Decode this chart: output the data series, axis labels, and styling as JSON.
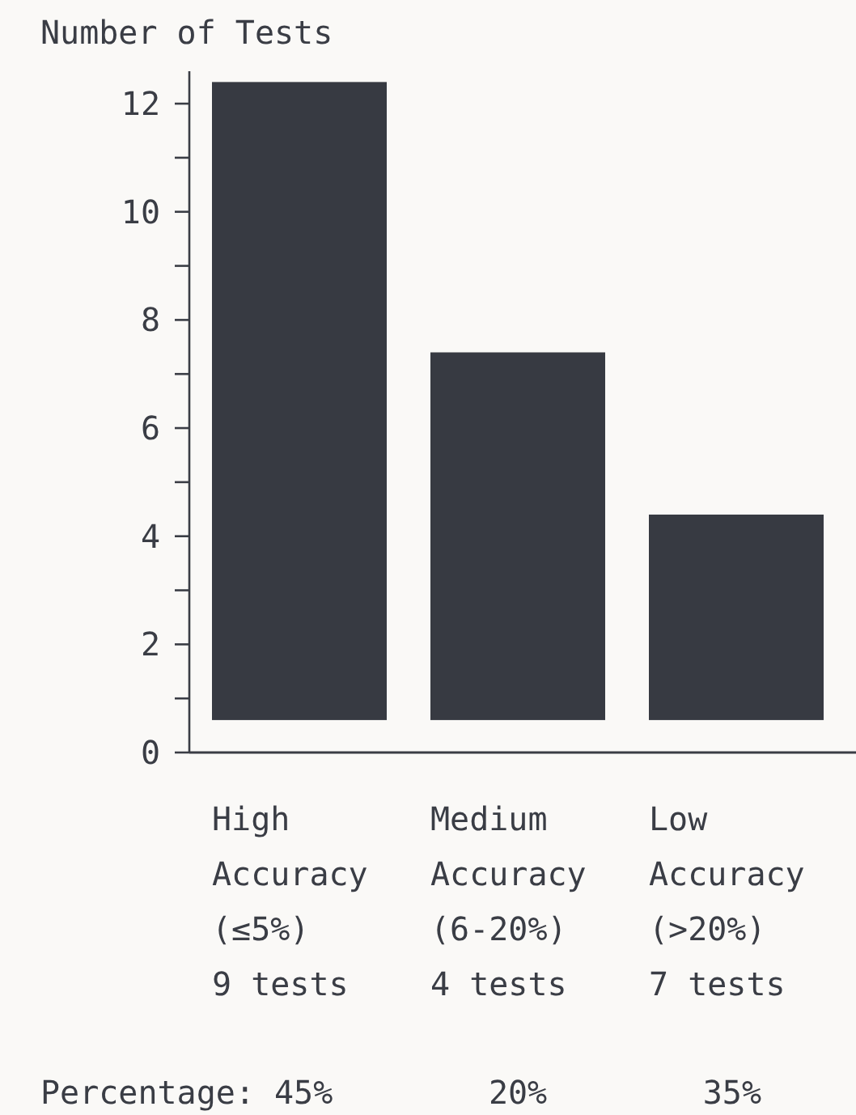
{
  "chart_data": {
    "type": "bar",
    "ylabel": "Number of Tests",
    "categories": [
      "High\nAccuracy\n(≤5%)\n9 tests",
      "Medium\nAccuracy\n(6-20%)\n4 tests",
      "Low\nAccuracy\n(>20%)\n7 tests"
    ],
    "base": [
      0.6,
      0.6,
      0.6
    ],
    "values": [
      11.8,
      6.8,
      3.8
    ],
    "color": "#373a42",
    "ylim": [
      0,
      12.6
    ],
    "yticks": [
      0,
      {
        "value": 1,
        "label": null
      },
      2,
      {
        "value": 3,
        "label": null
      },
      4,
      {
        "value": 5,
        "label": null
      },
      6,
      {
        "value": 7,
        "label": null
      },
      8,
      {
        "value": 9,
        "label": null
      },
      10,
      {
        "value": 11,
        "label": null
      },
      12
    ],
    "grid": false,
    "annotations": [
      "Percentage: 45%        20%        35%"
    ]
  }
}
